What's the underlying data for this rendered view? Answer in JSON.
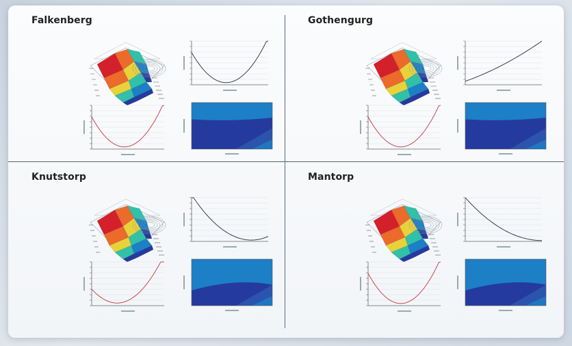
{
  "panels": [
    {
      "title": "Falkenberg",
      "line_shape": "u"
    },
    {
      "title": "Gothengurg",
      "line_shape": "rise"
    },
    {
      "title": "Knutstorp",
      "line_shape": "fall-u"
    },
    {
      "title": "Mantorp",
      "line_shape": "fall"
    }
  ],
  "colors": {
    "surface": [
      "#253a9e",
      "#1d7fc6",
      "#31c0a8",
      "#e8d23a",
      "#ec6a2a",
      "#d4202a"
    ],
    "parabola": "#c8474c",
    "line": "#3a3f48",
    "divider": "#556b80"
  }
}
